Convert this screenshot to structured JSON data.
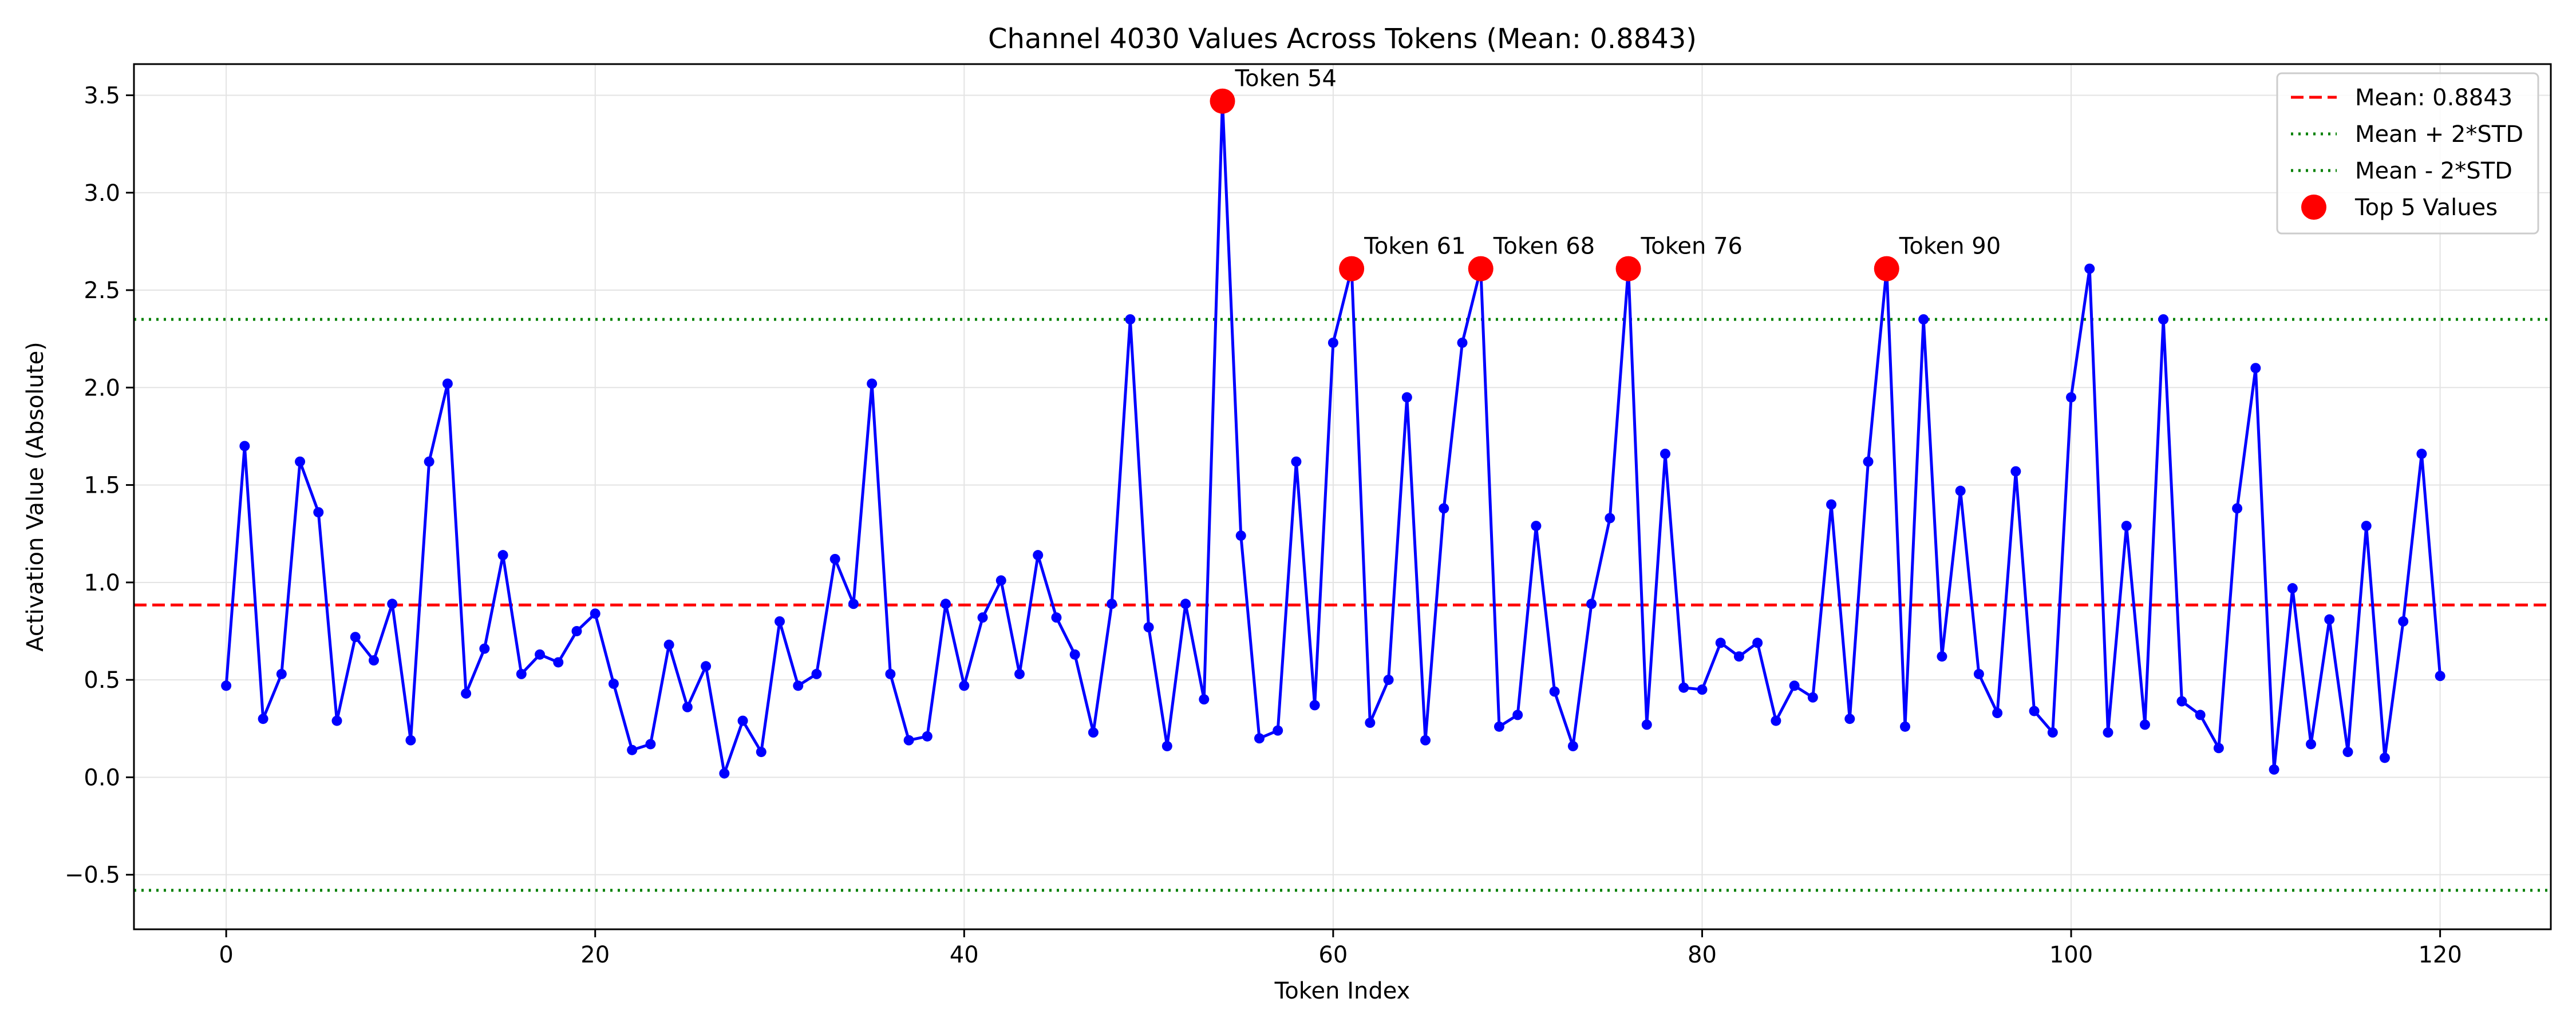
{
  "chart_data": {
    "type": "line",
    "title": "Channel 4030 Values Across Tokens (Mean: 0.8843)",
    "xlabel": "Token Index",
    "ylabel": "Activation Value (Absolute)",
    "xlim": [
      -5,
      126
    ],
    "ylim": [
      -0.78,
      3.66
    ],
    "x_ticks": [
      0,
      20,
      40,
      60,
      80,
      100,
      120
    ],
    "y_ticks": [
      -0.5,
      0.0,
      0.5,
      1.0,
      1.5,
      2.0,
      2.5,
      3.0,
      3.5
    ],
    "y_tick_labels": [
      "−0.5",
      "0.0",
      "0.5",
      "1.0",
      "1.5",
      "2.0",
      "2.5",
      "3.0",
      "3.5"
    ],
    "grid": true,
    "legend_position": "top-right",
    "series": [
      {
        "name": "",
        "color": "#0000ff",
        "x_start": 0,
        "values": [
          0.47,
          1.7,
          0.3,
          0.53,
          1.62,
          1.36,
          0.29,
          0.72,
          0.6,
          0.89,
          0.19,
          1.62,
          2.02,
          0.43,
          0.66,
          1.14,
          0.53,
          0.63,
          0.59,
          0.75,
          0.84,
          0.48,
          0.14,
          0.17,
          0.68,
          0.36,
          0.57,
          0.02,
          0.29,
          0.13,
          0.8,
          0.47,
          0.53,
          1.12,
          0.89,
          2.02,
          0.53,
          0.19,
          0.21,
          0.89,
          0.47,
          0.82,
          1.01,
          0.53,
          1.14,
          0.82,
          0.63,
          0.23,
          0.89,
          2.35,
          0.77,
          0.16,
          0.89,
          0.4,
          3.47,
          1.24,
          0.2,
          0.24,
          1.62,
          0.37,
          2.23,
          2.61,
          0.28,
          0.5,
          1.95,
          0.19,
          1.38,
          2.23,
          2.61,
          0.26,
          0.32,
          1.29,
          0.44,
          0.16,
          0.89,
          1.33,
          2.61,
          0.27,
          1.66,
          0.46,
          0.45,
          0.69,
          0.62,
          0.69,
          0.29,
          0.47,
          0.41,
          1.4,
          0.3,
          1.62,
          2.61,
          0.26,
          2.35,
          0.62,
          1.47,
          0.53,
          0.33,
          1.57,
          0.34,
          0.23,
          1.95,
          2.61,
          0.23,
          1.29,
          0.27,
          2.35,
          0.39,
          0.32,
          0.15,
          1.38,
          2.1,
          0.04,
          0.97,
          0.17,
          0.81,
          0.13,
          1.29,
          0.1,
          0.8,
          1.66,
          0.52
        ]
      }
    ],
    "reference_lines": [
      {
        "label": "Mean: 0.8843",
        "y": 0.8843,
        "color": "#ff0000",
        "style": "dashed"
      },
      {
        "label": "Mean + 2*STD",
        "y": 2.35,
        "color": "#008000",
        "style": "dotted"
      },
      {
        "label": "Mean - 2*STD",
        "y": -0.58,
        "color": "#008000",
        "style": "dotted"
      }
    ],
    "top_values": {
      "label": "Top 5 Values",
      "color": "#ff0000",
      "points": [
        {
          "x": 54,
          "y": 3.47,
          "label": "Token 54"
        },
        {
          "x": 61,
          "y": 2.61,
          "label": "Token 61"
        },
        {
          "x": 68,
          "y": 2.61,
          "label": "Token 68"
        },
        {
          "x": 76,
          "y": 2.61,
          "label": "Token 76"
        },
        {
          "x": 90,
          "y": 2.61,
          "label": "Token 90"
        }
      ]
    }
  }
}
